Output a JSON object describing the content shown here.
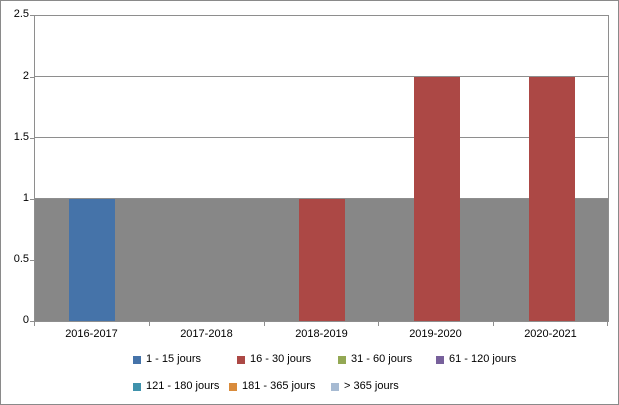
{
  "chart_data": {
    "type": "bar",
    "title": "",
    "xlabel": "",
    "ylabel": "",
    "categories": [
      "2016-2017",
      "2017-2018",
      "2018-2019",
      "2019-2020",
      "2020-2021"
    ],
    "series": [
      {
        "name": "1 - 15 jours",
        "color": "#4573A9",
        "values": [
          1,
          null,
          null,
          null,
          null
        ]
      },
      {
        "name": "16 - 30 jours",
        "color": "#AC4845",
        "values": [
          null,
          null,
          1,
          2,
          2
        ]
      },
      {
        "name": "31 - 60 jours",
        "color": "#93A854",
        "values": [
          null,
          null,
          null,
          null,
          null
        ]
      },
      {
        "name": "61 - 120 jours",
        "color": "#77609B",
        "values": [
          null,
          null,
          null,
          null,
          null
        ]
      },
      {
        "name": "121 - 180 jours",
        "color": "#3F92AC",
        "values": [
          null,
          null,
          null,
          null,
          null
        ]
      },
      {
        "name": "181 - 365 jours",
        "color": "#D98B3B",
        "values": [
          null,
          null,
          null,
          null,
          null
        ]
      },
      {
        "name": "> 365 jours",
        "color": "#A6BAD2",
        "values": [
          null,
          null,
          null,
          null,
          null
        ]
      }
    ],
    "background_band": {
      "from": 0,
      "to": 1,
      "color": "#878787"
    },
    "ylim": [
      0,
      2.5
    ],
    "yticks": [
      "0",
      "0.5",
      "1",
      "1.5",
      "2",
      "2.5"
    ],
    "grid": true,
    "legend_position": "bottom",
    "gridline_color": "#8e8e8e",
    "axis_color": "#8e8e8e",
    "text_color": "#000000"
  }
}
